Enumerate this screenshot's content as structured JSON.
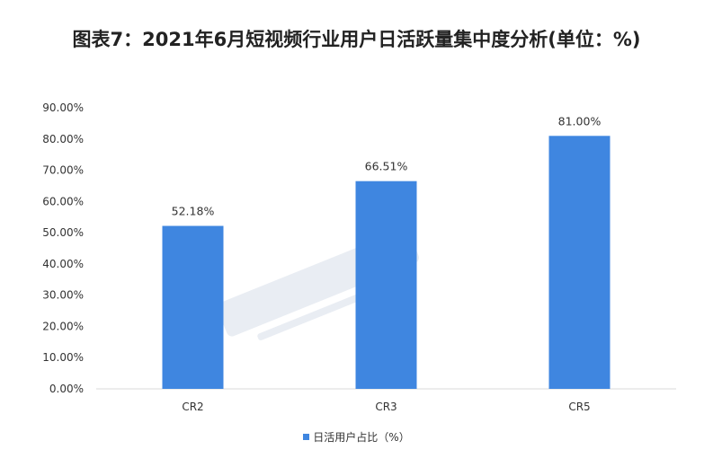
{
  "colors": {
    "bar": "#3f86e0",
    "axis": "#d9d9d9",
    "text": "#333333",
    "watermark": "#e6ebf2"
  },
  "chart_data": {
    "type": "bar",
    "title": "图表7：2021年6月短视频行业用户日活跃量集中度分析(单位：%)",
    "categories": [
      "CR2",
      "CR3",
      "CR5"
    ],
    "series": [
      {
        "name": "日活用户占比（%）",
        "values": [
          52.18,
          66.51,
          81.0
        ],
        "labels": [
          "52.18%",
          "66.51%",
          "81.00%"
        ]
      }
    ],
    "yticks": [
      "0.00%",
      "10.00%",
      "20.00%",
      "30.00%",
      "40.00%",
      "50.00%",
      "60.00%",
      "70.00%",
      "80.00%",
      "90.00%"
    ],
    "ylim": [
      0,
      90
    ],
    "xlabel": "",
    "ylabel": "",
    "grid": false,
    "legend_position": "bottom"
  }
}
